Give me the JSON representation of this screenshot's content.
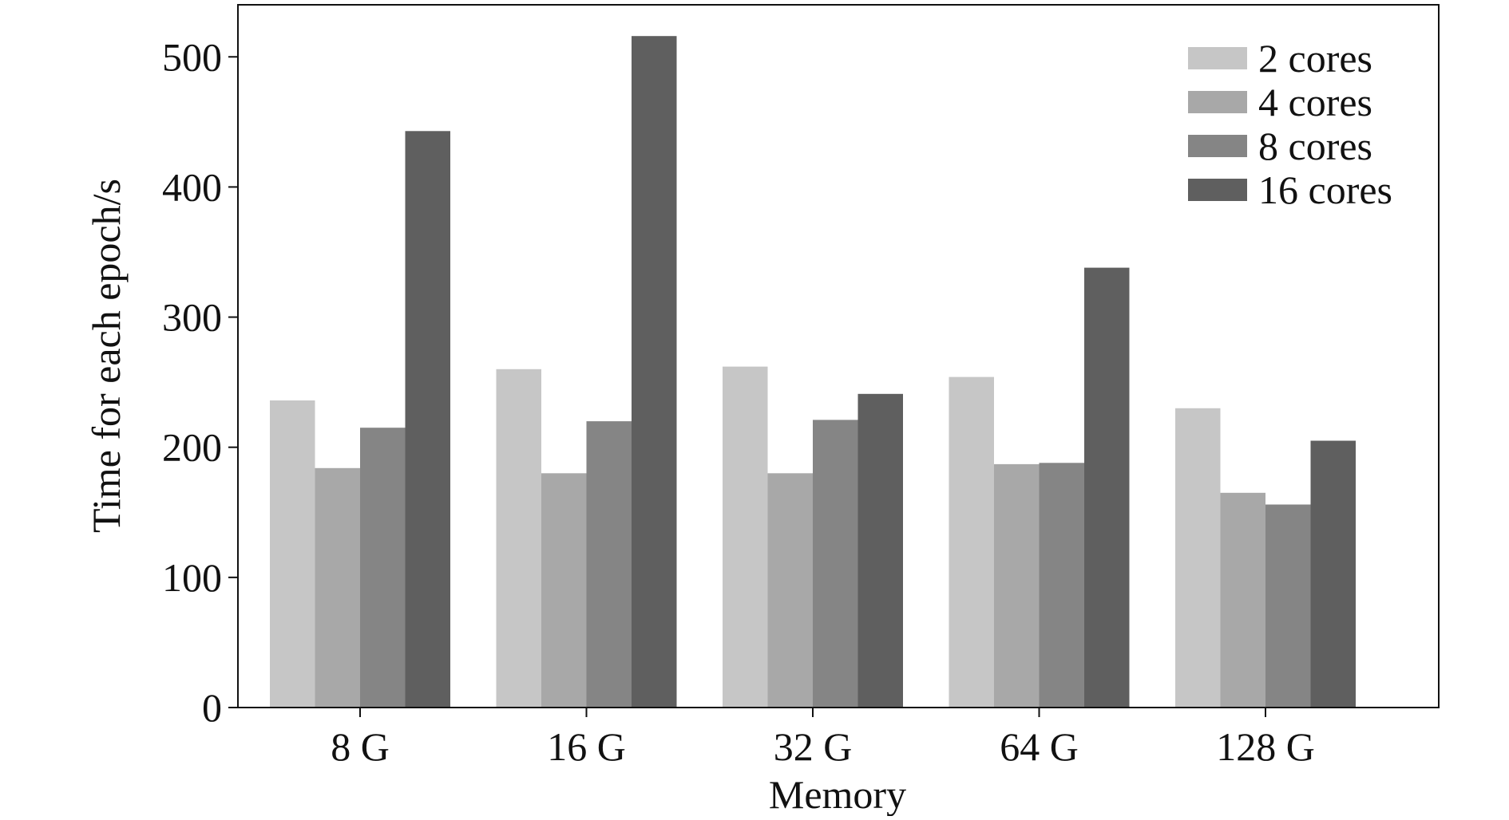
{
  "chart_data": {
    "type": "bar",
    "title": "",
    "xlabel": "Memory",
    "ylabel": "Time for each epoch/s",
    "categories": [
      "8 G",
      "16 G",
      "32 G",
      "64 G",
      "128 G"
    ],
    "ylim": [
      0,
      540
    ],
    "yticks": [
      0,
      100,
      200,
      300,
      400,
      500
    ],
    "grid": false,
    "legend_position": "top-right",
    "series": [
      {
        "name": "2 cores",
        "color": "#c6c6c6",
        "values": [
          236,
          260,
          262,
          254,
          230
        ]
      },
      {
        "name": "4 cores",
        "color": "#a8a8a8",
        "values": [
          184,
          180,
          180,
          187,
          165
        ]
      },
      {
        "name": "8 cores",
        "color": "#858585",
        "values": [
          215,
          220,
          221,
          188,
          156
        ]
      },
      {
        "name": "16 cores",
        "color": "#5f5f5f",
        "values": [
          443,
          516,
          241,
          338,
          205
        ]
      }
    ]
  }
}
